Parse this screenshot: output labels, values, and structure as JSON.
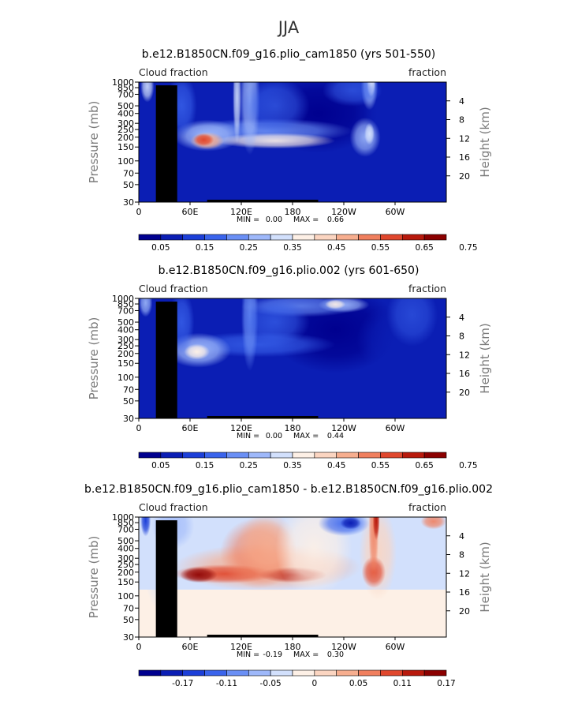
{
  "super_title": "JJA",
  "chart_data": [
    {
      "type": "heatmap",
      "title": "b.e12.B1850CN.f09_g16.plio_cam1850 (yrs 501-550)",
      "left_label": "Cloud fraction",
      "right_label": "fraction",
      "ylabel": "Pressure (mb)",
      "ylabel_right": "Height (km)",
      "x_ticks": [
        "0",
        "60E",
        "120E",
        "180",
        "120W",
        "60W"
      ],
      "x_tick_lon": [
        0,
        60,
        120,
        180,
        240,
        300
      ],
      "y_ticks": [
        "30",
        "50",
        "70",
        "100",
        "150",
        "200",
        "250",
        "300",
        "400",
        "500",
        "700",
        "850",
        "1000"
      ],
      "y_tick_p": [
        30,
        50,
        70,
        100,
        150,
        200,
        250,
        300,
        400,
        500,
        700,
        850,
        1000
      ],
      "height_ticks": [
        "20",
        "16",
        "12",
        "8",
        "4"
      ],
      "height_km": [
        20,
        16,
        12,
        8,
        4
      ],
      "ylim": [
        1000,
        30
      ],
      "xlim": [
        0,
        360
      ],
      "stats": {
        "min_label": "MIN =",
        "min_value": "0.00",
        "max_label": "MAX =",
        "max_value": "0.66"
      },
      "colorbar_labels": [
        "0.05",
        "0.15",
        "0.25",
        "0.35",
        "0.45",
        "0.55",
        "0.65",
        "0.75"
      ],
      "colorbar_colors": [
        "#00008f",
        "#0b1eb4",
        "#1c3fd8",
        "#3a64ec",
        "#6a8ff5",
        "#9eb8fa",
        "#d2e0fc",
        "#fdf0e6",
        "#fbd5c1",
        "#f7ae8f",
        "#f07f5e",
        "#e0472d",
        "#b8190c",
        "#8b0000"
      ]
    },
    {
      "type": "heatmap",
      "title": "b.e12.B1850CN.f09_g16.plio.002 (yrs 601-650)",
      "left_label": "Cloud fraction",
      "right_label": "fraction",
      "ylabel": "Pressure (mb)",
      "ylabel_right": "Height (km)",
      "x_ticks": [
        "0",
        "60E",
        "120E",
        "180",
        "120W",
        "60W"
      ],
      "x_tick_lon": [
        0,
        60,
        120,
        180,
        240,
        300
      ],
      "y_ticks": [
        "30",
        "50",
        "70",
        "100",
        "150",
        "200",
        "250",
        "300",
        "400",
        "500",
        "700",
        "850",
        "1000"
      ],
      "y_tick_p": [
        30,
        50,
        70,
        100,
        150,
        200,
        250,
        300,
        400,
        500,
        700,
        850,
        1000
      ],
      "height_ticks": [
        "20",
        "16",
        "12",
        "8",
        "4"
      ],
      "height_km": [
        20,
        16,
        12,
        8,
        4
      ],
      "ylim": [
        1000,
        30
      ],
      "xlim": [
        0,
        360
      ],
      "stats": {
        "min_label": "MIN =",
        "min_value": "0.00",
        "max_label": "MAX =",
        "max_value": "0.44"
      },
      "colorbar_labels": [
        "0.05",
        "0.15",
        "0.25",
        "0.35",
        "0.45",
        "0.55",
        "0.65",
        "0.75"
      ],
      "colorbar_colors": [
        "#00008f",
        "#0b1eb4",
        "#1c3fd8",
        "#3a64ec",
        "#6a8ff5",
        "#9eb8fa",
        "#d2e0fc",
        "#fdf0e6",
        "#fbd5c1",
        "#f7ae8f",
        "#f07f5e",
        "#e0472d",
        "#b8190c",
        "#8b0000"
      ]
    },
    {
      "type": "heatmap",
      "title": "b.e12.B1850CN.f09_g16.plio_cam1850 - b.e12.B1850CN.f09_g16.plio.002",
      "left_label": "Cloud fraction",
      "right_label": "fraction",
      "ylabel": "Pressure (mb)",
      "ylabel_right": "Height (km)",
      "x_ticks": [
        "0",
        "60E",
        "120E",
        "180",
        "120W",
        "60W"
      ],
      "x_tick_lon": [
        0,
        60,
        120,
        180,
        240,
        300
      ],
      "y_ticks": [
        "30",
        "50",
        "70",
        "100",
        "150",
        "200",
        "250",
        "300",
        "400",
        "500",
        "700",
        "850",
        "1000"
      ],
      "y_tick_p": [
        30,
        50,
        70,
        100,
        150,
        200,
        250,
        300,
        400,
        500,
        700,
        850,
        1000
      ],
      "height_ticks": [
        "20",
        "16",
        "12",
        "8",
        "4"
      ],
      "height_km": [
        20,
        16,
        12,
        8,
        4
      ],
      "ylim": [
        1000,
        30
      ],
      "xlim": [
        0,
        360
      ],
      "stats": {
        "min_label": "MIN =",
        "min_value": "-0.19",
        "max_label": "MAX =",
        "max_value": "0.30"
      },
      "colorbar_labels": [
        "-0.17",
        "-0.11",
        "-0.05",
        "0",
        "0.05",
        "0.11",
        "0.17"
      ],
      "colorbar_colors": [
        "#00008f",
        "#0b1eb4",
        "#1c3fd8",
        "#3a64ec",
        "#6a8ff5",
        "#9eb8fa",
        "#d2e0fc",
        "#fdf0e6",
        "#fbd5c1",
        "#f7ae8f",
        "#f07f5e",
        "#e0472d",
        "#b8190c",
        "#8b0000"
      ]
    }
  ]
}
